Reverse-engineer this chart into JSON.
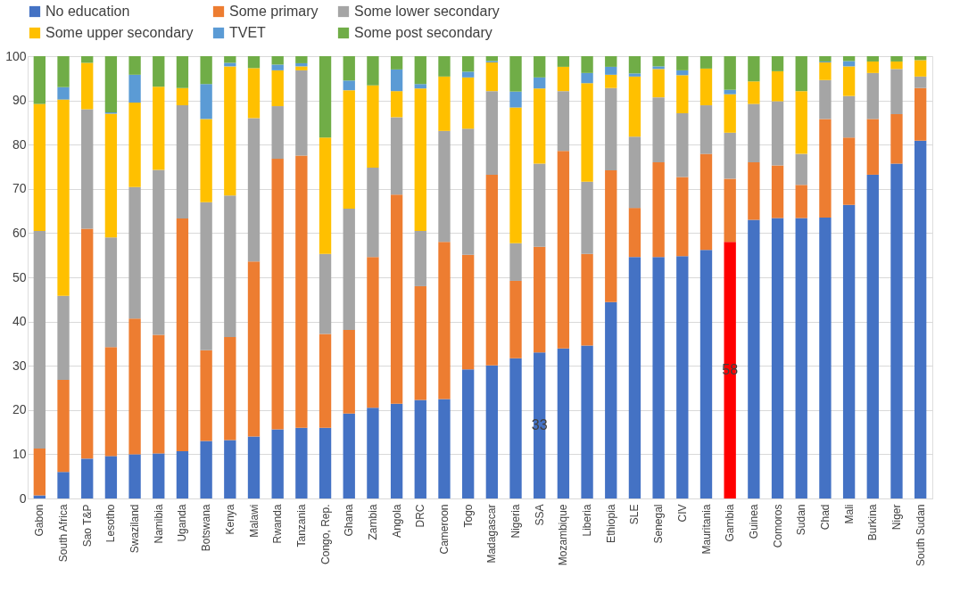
{
  "chart_data": {
    "type": "bar",
    "stacked": true,
    "legend": "top",
    "grid": "y",
    "categories": [
      "Gabon",
      "South Africa",
      "Sao T&P",
      "Lesotho",
      "Swaziland",
      "Namibia",
      "Uganda",
      "Botswana",
      "Kenya",
      "Malawi",
      "Rwanda",
      "Tanzania",
      "Congo, Rep.",
      "Ghana",
      "Zambia",
      "Angola",
      "DRC",
      "Cameroon",
      "Togo",
      "Madagascar",
      "Nigeria",
      "SSA",
      "Mozambique",
      "Liberia",
      "Ethiopia",
      "SLE",
      "Senegal",
      "CIV",
      "Mauritania",
      "Gambia",
      "Guinea",
      "Comoros",
      "Sudan",
      "Chad",
      "Mali",
      "Burkina",
      "Niger",
      "South Sudan"
    ],
    "ylim": [
      0,
      100
    ],
    "yticks": [
      0,
      10,
      20,
      30,
      40,
      50,
      60,
      70,
      80,
      90,
      100
    ],
    "series": [
      {
        "name": "No education",
        "color": "#4472c4",
        "colors": [
          "#4472c4",
          "#4472c4",
          "#4472c4",
          "#4472c4",
          "#4472c4",
          "#4472c4",
          "#4472c4",
          "#4472c4",
          "#4472c4",
          "#4472c4",
          "#4472c4",
          "#4472c4",
          "#4472c4",
          "#4472c4",
          "#4472c4",
          "#4472c4",
          "#4472c4",
          "#4472c4",
          "#4472c4",
          "#4472c4",
          "#4472c4",
          "#4472c4",
          "#4472c4",
          "#4472c4",
          "#4472c4",
          "#4472c4",
          "#4472c4",
          "#4472c4",
          "#4472c4",
          "#ff0000",
          "#4472c4",
          "#4472c4",
          "#4472c4",
          "#4472c4",
          "#4472c4",
          "#4472c4",
          "#4472c4",
          "#4472c4"
        ],
        "values": [
          0.7,
          6,
          9,
          9.6,
          10,
          10.2,
          10.7,
          13,
          13.2,
          14,
          15.6,
          16,
          16,
          19.2,
          20.5,
          21.4,
          22.3,
          22.5,
          29.2,
          30.1,
          31.7,
          33,
          33.9,
          34.6,
          44.4,
          54.6,
          54.6,
          54.8,
          56.2,
          58,
          63,
          63.4,
          63.4,
          63.5,
          66.4,
          73.2,
          75.7,
          80.9
        ],
        "value_labels": [
          null,
          null,
          null,
          null,
          null,
          null,
          null,
          null,
          null,
          null,
          null,
          null,
          null,
          null,
          null,
          null,
          null,
          null,
          null,
          null,
          null,
          "33",
          null,
          null,
          null,
          null,
          null,
          null,
          null,
          "58",
          null,
          null,
          null,
          null,
          null,
          null,
          null,
          null
        ]
      },
      {
        "name": "Some primary",
        "color": "#ed7d31",
        "values": [
          10.6,
          20.8,
          52,
          24.6,
          30.7,
          26.8,
          52.6,
          20.5,
          23.3,
          39.6,
          61.2,
          61.5,
          21.2,
          18.9,
          34.1,
          47.3,
          25.7,
          35.5,
          25.9,
          43.1,
          17.5,
          23.9,
          44.7,
          20.7,
          29.8,
          11.1,
          21.4,
          17.9,
          21.7,
          14.3,
          13,
          11.9,
          7.5,
          22.3,
          15.2,
          12.6,
          11.2,
          11.9
        ]
      },
      {
        "name": "Some lower secondary",
        "color": "#a5a5a5",
        "values": [
          49.2,
          19,
          27,
          24.8,
          29.7,
          37.3,
          25.6,
          33.5,
          32,
          32.4,
          11.9,
          19.3,
          18.1,
          27.4,
          20.2,
          17.5,
          12.5,
          25.1,
          28.5,
          18.9,
          8.5,
          18.8,
          13.5,
          16.3,
          18.6,
          16.1,
          14.7,
          14.4,
          11,
          10.4,
          13.2,
          14.5,
          7,
          8.8,
          9.4,
          10.4,
          10.2,
          2.6
        ]
      },
      {
        "name": "Some upper secondary",
        "color": "#ffc000",
        "values": [
          28.7,
          44.4,
          10.5,
          28,
          19.1,
          18.8,
          3.9,
          18.8,
          29.2,
          11.3,
          8.1,
          0.9,
          26.3,
          26.8,
          18.6,
          5.9,
          32.2,
          12.3,
          11.6,
          6.5,
          30.7,
          17,
          5.5,
          22.3,
          3,
          13.6,
          6.4,
          8.6,
          8.3,
          8.7,
          5.1,
          6.8,
          14.2,
          4,
          6.7,
          2.6,
          1.7,
          3.7
        ]
      },
      {
        "name": "TVET",
        "color": "#5b9bd5",
        "values": [
          0,
          2.8,
          0,
          0.3,
          6.3,
          0,
          0,
          7.9,
          0.8,
          0,
          1.3,
          0.7,
          0,
          2.2,
          0,
          4.9,
          1,
          0,
          1.3,
          0.3,
          3.6,
          2.5,
          0,
          2.3,
          1.8,
          0.7,
          0.6,
          1.1,
          0,
          1,
          0,
          0,
          0,
          0.2,
          1.2,
          0,
          0,
          0
        ]
      },
      {
        "name": "Some post secondary",
        "color": "#70ad47",
        "values": [
          10.8,
          7,
          1.5,
          12.7,
          4.2,
          6.9,
          7.2,
          6.3,
          1.5,
          2.7,
          1.9,
          1.6,
          18.4,
          5.5,
          6.6,
          3,
          6.3,
          4.6,
          3.5,
          1.1,
          8,
          4.8,
          2.4,
          3.8,
          2.4,
          3.9,
          2.3,
          3.2,
          2.8,
          7.6,
          5.7,
          3.4,
          7.9,
          1.2,
          1.1,
          1.2,
          1.2,
          0.9
        ]
      }
    ]
  }
}
